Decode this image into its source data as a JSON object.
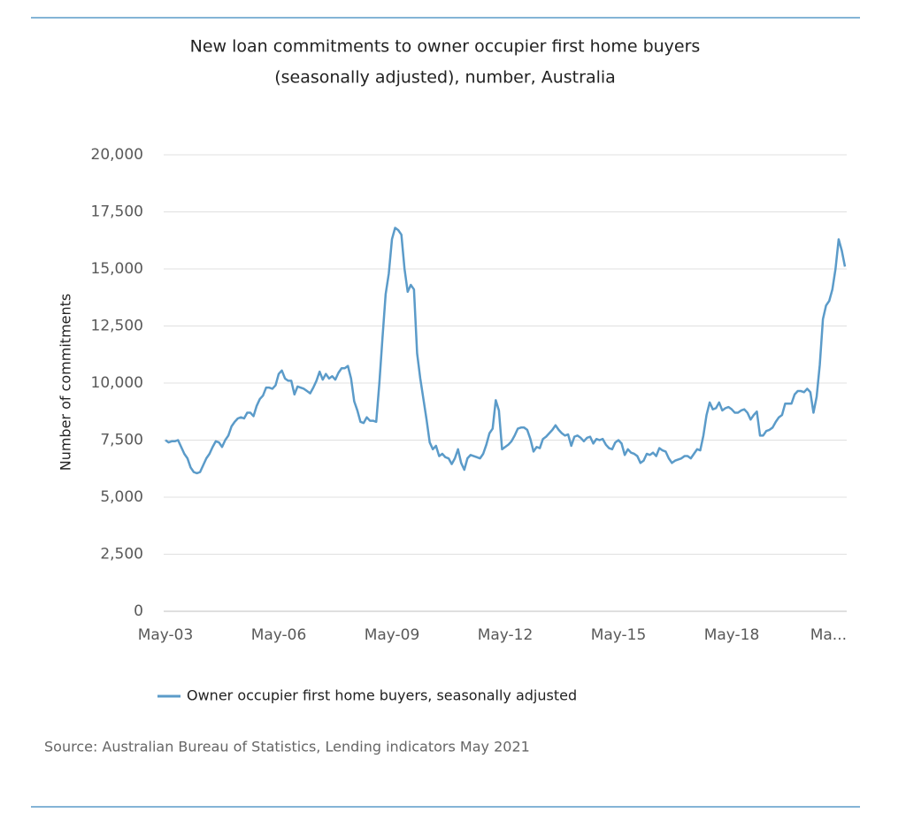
{
  "chart_data": {
    "type": "line",
    "title": [
      "New loan commitments to owner occupier first home buyers",
      "(seasonally adjusted), number, Australia"
    ],
    "ylabel": "Number of commitments",
    "source": "Source: Australian Bureau of Statistics, Lending indicators May 2021",
    "ylim": [
      0,
      20000
    ],
    "yticks": [
      0,
      {
        "value": 2500,
        "label": "2,500"
      },
      {
        "value": 5000,
        "label": "5,000"
      },
      {
        "value": 7500,
        "label": "7,500"
      },
      {
        "value": 10000,
        "label": "10,000"
      },
      {
        "value": 12500,
        "label": "12,500"
      },
      {
        "value": 15000,
        "label": "15,000"
      },
      {
        "value": 17500,
        "label": "17,500"
      },
      {
        "value": 20000,
        "label": "20,000"
      }
    ],
    "grid": true,
    "legend": "bottom",
    "categories": [
      "May-03",
      null,
      null,
      null,
      null,
      null,
      null,
      null,
      null,
      null,
      null,
      null,
      null,
      null,
      null,
      null,
      null,
      null,
      null,
      null,
      null,
      null,
      null,
      null,
      null,
      null,
      null,
      null,
      null,
      null,
      null,
      null,
      null,
      null,
      null,
      null,
      "May-06",
      null,
      null,
      null,
      null,
      null,
      null,
      null,
      null,
      null,
      null,
      null,
      null,
      null,
      null,
      null,
      null,
      null,
      null,
      null,
      null,
      null,
      null,
      null,
      null,
      null,
      null,
      null,
      null,
      null,
      null,
      null,
      null,
      null,
      null,
      null,
      "May-09",
      null,
      null,
      null,
      null,
      null,
      null,
      null,
      null,
      null,
      null,
      null,
      null,
      null,
      null,
      null,
      null,
      null,
      null,
      null,
      null,
      null,
      null,
      null,
      null,
      null,
      null,
      null,
      null,
      null,
      null,
      null,
      null,
      null,
      null,
      null,
      "May-12",
      null,
      null,
      null,
      null,
      null,
      null,
      null,
      null,
      null,
      null,
      null,
      null,
      null,
      null,
      null,
      null,
      null,
      null,
      null,
      null,
      null,
      null,
      null,
      null,
      null,
      null,
      null,
      null,
      null,
      null,
      null,
      null,
      null,
      null,
      null,
      "May-15",
      null,
      null,
      null,
      null,
      null,
      null,
      null,
      null,
      null,
      null,
      null,
      null,
      null,
      null,
      null,
      null,
      null,
      null,
      null,
      null,
      null,
      null,
      null,
      null,
      null,
      null,
      null,
      null,
      null,
      null,
      null,
      null,
      null,
      null,
      null,
      "May-18",
      null,
      null,
      null,
      null,
      null,
      null,
      null,
      null,
      null,
      null,
      null,
      null,
      null,
      null,
      null,
      null,
      null,
      null,
      null,
      null,
      null,
      null,
      null,
      null,
      null,
      null,
      null,
      null,
      null,
      null,
      null,
      null,
      null,
      null,
      null,
      "Ma..."
    ],
    "series": [
      {
        "name": "Owner occupier first home buyers, seasonally adjusted",
        "color": "#5b9bc9",
        "values": [
          7500,
          7400,
          7450,
          7450,
          7500,
          7200,
          6900,
          6700,
          6300,
          6100,
          6050,
          6100,
          6400,
          6700,
          6900,
          7200,
          7450,
          7400,
          7200,
          7500,
          7700,
          8100,
          8300,
          8450,
          8500,
          8450,
          8700,
          8700,
          8550,
          9000,
          9300,
          9450,
          9800,
          9800,
          9750,
          9900,
          10400,
          10550,
          10200,
          10100,
          10100,
          9500,
          9850,
          9800,
          9750,
          9650,
          9550,
          9800,
          10100,
          10500,
          10150,
          10400,
          10200,
          10300,
          10150,
          10450,
          10650,
          10650,
          10750,
          10200,
          9200,
          8800,
          8300,
          8250,
          8500,
          8350,
          8350,
          8300,
          10000,
          12000,
          13900,
          14800,
          16300,
          16800,
          16700,
          16500,
          15000,
          14000,
          14300,
          14100,
          11300,
          10200,
          9300,
          8400,
          7400,
          7100,
          7250,
          6800,
          6900,
          6750,
          6700,
          6450,
          6700,
          7100,
          6500,
          6200,
          6700,
          6850,
          6800,
          6750,
          6700,
          6900,
          7300,
          7800,
          8000,
          9250,
          8800,
          7100,
          7200,
          7300,
          7450,
          7700,
          8000,
          8050,
          8050,
          7950,
          7550,
          7000,
          7200,
          7150,
          7550,
          7650,
          7800,
          7950,
          8150,
          7950,
          7800,
          7700,
          7750,
          7250,
          7650,
          7700,
          7600,
          7450,
          7600,
          7650,
          7350,
          7550,
          7500,
          7550,
          7300,
          7150,
          7100,
          7400,
          7500,
          7350,
          6850,
          7100,
          6950,
          6900,
          6800,
          6500,
          6600,
          6900,
          6850,
          6950,
          6800,
          7150,
          7050,
          7000,
          6700,
          6500,
          6600,
          6650,
          6700,
          6800,
          6800,
          6700,
          6900,
          7100,
          7050,
          7700,
          8600,
          9150,
          8850,
          8900,
          9150,
          8800,
          8900,
          8950,
          8850,
          8700,
          8700,
          8800,
          8850,
          8700,
          8400,
          8600,
          8750,
          7700,
          7700,
          7900,
          7950,
          8050,
          8300,
          8500,
          8600,
          9100,
          9100,
          9100,
          9500,
          9650,
          9650,
          9600,
          9750,
          9600,
          8700,
          9400,
          10800,
          12800,
          13400,
          13600,
          14100,
          15000,
          16300,
          15800,
          15100
        ]
      }
    ]
  }
}
